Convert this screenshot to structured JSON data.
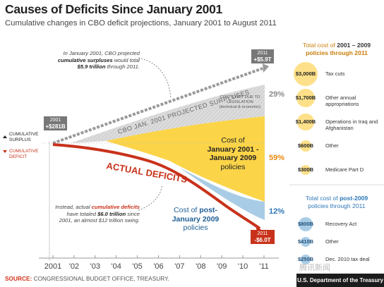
{
  "title": "Causes of Deficits Since January 2001",
  "subtitle": "Cumulative changes in CBO deficit projections, January 2001 to August 2011",
  "legend_surplus_label": "CUMULATIVE SURPLUS",
  "legend_deficit_label": "CUMULATIVE DEFICIT",
  "annotation_projected": "In January 2001, CBO projected cumulative surpluses would total $5.9 trillion through 2011.",
  "annotation_actual": "Instead, actual cumulative deficits have totaled $6.0 trillion since 2001, an almost $12 trillion swing.",
  "projected_line_label": "CBO JAN. 2001 PROJECTED SURPLUSES",
  "actual_line_label": "ACTUAL DEFICITS",
  "not_legislation_label": "COSTS NOT DUE TO LEGISLATION (technical & economic)",
  "band_2001_2009_label": "Cost of January 2001 - January 2009 policies",
  "band_post2009_label": "Cost of post-January 2009 policies",
  "start_callout": {
    "year": "2001",
    "value": "+$281B"
  },
  "end_surplus_callout": {
    "year": "2011",
    "value": "+$5.9T"
  },
  "end_deficit_callout": {
    "year": "2011",
    "value": "-$6.0T"
  },
  "shares": {
    "not_legislation": "29%",
    "policies_2001_2009": "59%",
    "policies_post2009": "12%"
  },
  "panel_2001_2009": {
    "title_prefix": "Total cost of ",
    "title_bold": "2001 – 2009",
    "title_suffix": "policies through 2011",
    "items": [
      {
        "value": "$3,000B",
        "label": "Tax cuts"
      },
      {
        "value": "$1,700B",
        "label": "Other annual appropriations"
      },
      {
        "value": "$1,400B",
        "label": "Operations in Iraq and Afghanistan"
      },
      {
        "value": "$600B",
        "label": "Other"
      },
      {
        "value": "$300B",
        "label": "Medicare Part D"
      }
    ]
  },
  "panel_post2009": {
    "title_prefix": "Total cost of ",
    "title_bold": "post-2009",
    "title_suffix": "policies through 2011",
    "items": [
      {
        "value": "$800B",
        "label": "Recovery Act"
      },
      {
        "value": "$410B",
        "label": "Other"
      },
      {
        "value": "$250B",
        "label": "Dec. 2010 tax deal"
      }
    ]
  },
  "source_label": "SOURCE:",
  "source_text": "CONGRESSIONAL BUDGET OFFICE, TREASURY.",
  "footer": "U.S. Department of the Treasury",
  "watermark": "腾讯新闻",
  "colors": {
    "deficit_red": "#c8321b",
    "surplus_gray": "#999999",
    "not_legislation_fill": "#d8d8d8",
    "policies_2001_2009_fill": "#fbd448",
    "policies_post2009_fill": "#a9cce6",
    "accent_orange": "#e88a12",
    "accent_blue": "#2e78b8"
  },
  "chart_data": {
    "type": "area",
    "x": [
      "2001",
      "'02",
      "'03",
      "'04",
      "'05",
      "'06",
      "'07",
      "'08",
      "'09",
      "'10",
      "'11"
    ],
    "ylabel": "",
    "series": [
      {
        "name": "CBO JAN. 2001 PROJECTED SURPLUSES",
        "values": [
          0.28,
          0.8,
          1.3,
          1.8,
          2.3,
          2.8,
          3.3,
          3.9,
          4.5,
          5.2,
          5.9
        ]
      },
      {
        "name": "ACTUAL DEFICITS",
        "values": [
          0.28,
          -0.1,
          -0.5,
          -1.0,
          -1.3,
          -1.5,
          -1.7,
          -2.2,
          -3.6,
          -4.9,
          -6.0
        ]
      }
    ],
    "bands": [
      {
        "name": "COSTS NOT DUE TO LEGISLATION",
        "share": 0.29
      },
      {
        "name": "Cost of January 2001 - January 2009 policies",
        "share": 0.59
      },
      {
        "name": "Cost of post-January 2009 policies",
        "share": 0.12
      }
    ]
  }
}
